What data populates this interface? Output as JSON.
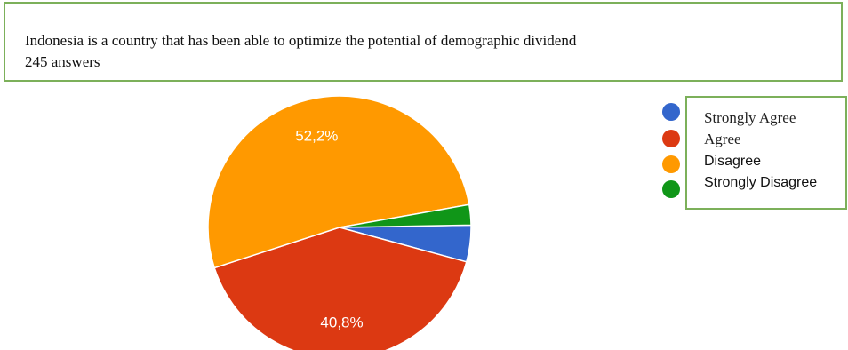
{
  "question": {
    "title": "Indonesia is a country that has been able to optimize the potential of demographic dividend",
    "answers": "245 answers"
  },
  "chart_data": {
    "type": "pie",
    "categories": [
      "Strongly Agree",
      "Agree",
      "Disagree",
      "Strongly Disagree"
    ],
    "values": [
      4.5,
      40.8,
      52.2,
      2.5
    ],
    "data_labels": [
      "",
      "40,8%",
      "52,2%",
      ""
    ],
    "colors": [
      "#3366cc",
      "#dc3912",
      "#ff9900",
      "#109618"
    ],
    "legend_position": "right"
  }
}
